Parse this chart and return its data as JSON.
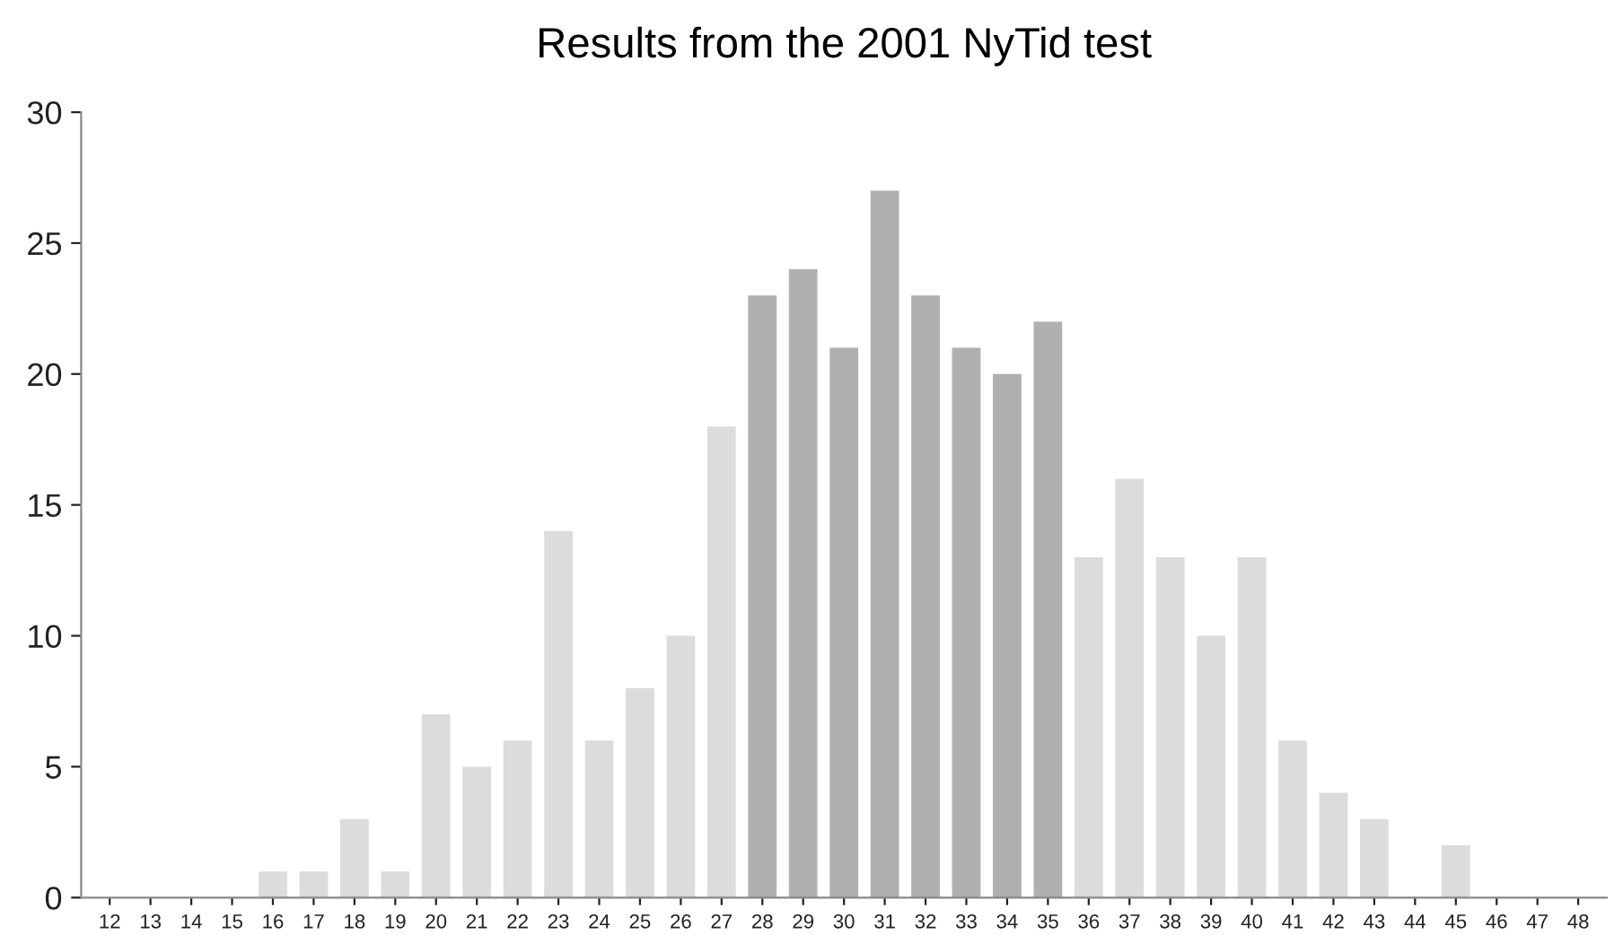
{
  "chart_data": {
    "type": "bar",
    "title": "Results from the 2001 NyTid test",
    "categories": [
      "12",
      "13",
      "14",
      "15",
      "16",
      "17",
      "18",
      "19",
      "20",
      "21",
      "22",
      "23",
      "24",
      "25",
      "26",
      "27",
      "28",
      "29",
      "30",
      "31",
      "32",
      "33",
      "34",
      "35",
      "36",
      "37",
      "38",
      "39",
      "40",
      "41",
      "42",
      "43",
      "44",
      "45",
      "46",
      "47",
      "48"
    ],
    "values": [
      0,
      0,
      0,
      0,
      1,
      1,
      3,
      1,
      7,
      5,
      6,
      14,
      6,
      8,
      10,
      18,
      23,
      24,
      21,
      27,
      23,
      21,
      20,
      22,
      13,
      16,
      13,
      10,
      13,
      6,
      4,
      3,
      0,
      2,
      0,
      0,
      0
    ],
    "colors": [
      "#dcdcdc",
      "#dcdcdc",
      "#dcdcdc",
      "#dcdcdc",
      "#dcdcdc",
      "#dcdcdc",
      "#dcdcdc",
      "#dcdcdc",
      "#dcdcdc",
      "#dcdcdc",
      "#dcdcdc",
      "#dcdcdc",
      "#dcdcdc",
      "#dcdcdc",
      "#dcdcdc",
      "#dcdcdc",
      "#b0b0b0",
      "#b0b0b0",
      "#b0b0b0",
      "#b0b0b0",
      "#b0b0b0",
      "#b0b0b0",
      "#b0b0b0",
      "#b0b0b0",
      "#dcdcdc",
      "#dcdcdc",
      "#dcdcdc",
      "#dcdcdc",
      "#dcdcdc",
      "#dcdcdc",
      "#dcdcdc",
      "#dcdcdc",
      "#dcdcdc",
      "#dcdcdc",
      "#dcdcdc",
      "#dcdcdc",
      "#dcdcdc"
    ],
    "ylim": [
      0,
      30
    ],
    "yticks": [
      0,
      5,
      10,
      15,
      20,
      25,
      30
    ],
    "grid": false,
    "legend": false
  }
}
